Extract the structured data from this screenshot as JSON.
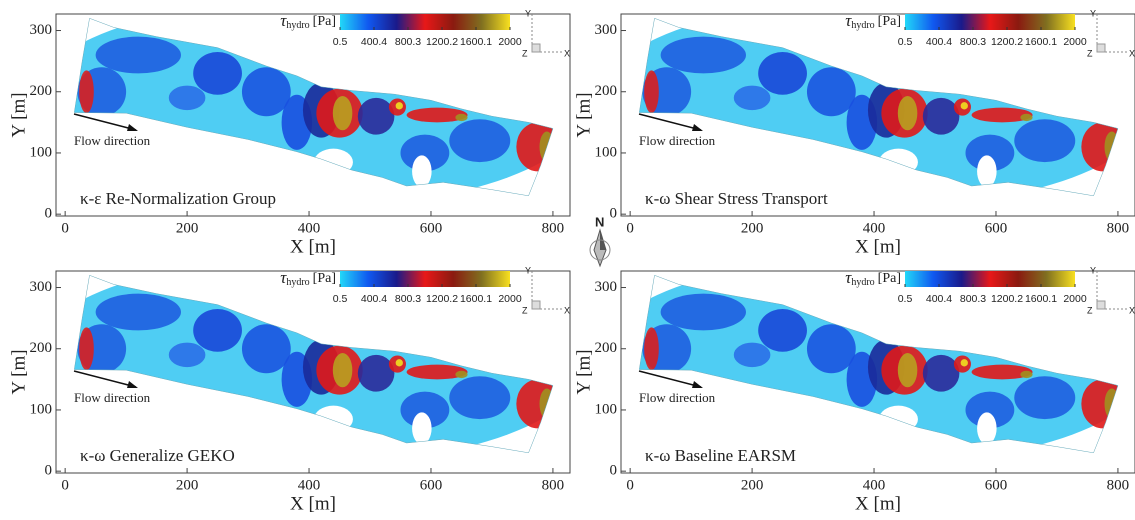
{
  "chart_data": [
    {
      "type": "contour",
      "panel_label": "κ-ε Re-Normalization Group",
      "xlabel": "X [m]",
      "ylabel": "Y [m]",
      "xlim": [
        -15,
        828
      ],
      "ylim": [
        -3,
        327
      ],
      "xticks": [
        0,
        200,
        400,
        600,
        800
      ],
      "yticks": [
        0,
        100,
        200,
        300
      ],
      "colorbar_symbol": "τ",
      "colorbar_subscript": "hydro",
      "colorbar_unit": "[Pa]",
      "colorbar_ticks": [
        0.5,
        400.4,
        800.3,
        1200.2,
        1600.1,
        2000
      ],
      "colormap": [
        "#22d8f8",
        "#1058f0",
        "#1a1a8a",
        "#e81818",
        "#8a1a10",
        "#807020",
        "#f8e020"
      ],
      "annotation": "Flow direction",
      "triad": [
        "Y",
        "Z",
        "X"
      ]
    },
    {
      "type": "contour",
      "panel_label": "κ-ω Shear Stress Transport",
      "xlabel": "X [m]",
      "ylabel": "Y [m]",
      "xlim": [
        -15,
        828
      ],
      "ylim": [
        -3,
        327
      ],
      "xticks": [
        0,
        200,
        400,
        600,
        800
      ],
      "yticks": [
        0,
        100,
        200,
        300
      ],
      "colorbar_symbol": "τ",
      "colorbar_subscript": "hydro",
      "colorbar_unit": "[Pa]",
      "colorbar_ticks": [
        0.5,
        400.4,
        800.3,
        1200.2,
        1600.1,
        2000
      ],
      "colormap": [
        "#22d8f8",
        "#1058f0",
        "#1a1a8a",
        "#e81818",
        "#8a1a10",
        "#807020",
        "#f8e020"
      ],
      "annotation": "Flow direction",
      "triad": [
        "Y",
        "Z",
        "X"
      ]
    },
    {
      "type": "contour",
      "panel_label": "κ-ω Generalize GEKO",
      "xlabel": "X [m]",
      "ylabel": "Y [m]",
      "xlim": [
        -15,
        828
      ],
      "ylim": [
        -3,
        327
      ],
      "xticks": [
        0,
        200,
        400,
        600,
        800
      ],
      "yticks": [
        0,
        100,
        200,
        300
      ],
      "colorbar_symbol": "τ",
      "colorbar_subscript": "hydro",
      "colorbar_unit": "[Pa]",
      "colorbar_ticks": [
        0.5,
        400.4,
        800.3,
        1200.2,
        1600.1,
        2000
      ],
      "colormap": [
        "#22d8f8",
        "#1058f0",
        "#1a1a8a",
        "#e81818",
        "#8a1a10",
        "#807020",
        "#f8e020"
      ],
      "annotation": "Flow direction",
      "triad": [
        "Y",
        "Z",
        "X"
      ]
    },
    {
      "type": "contour",
      "panel_label": "κ-ω Baseline EARSM",
      "xlabel": "X [m]",
      "ylabel": "Y [m]",
      "xlim": [
        -15,
        828
      ],
      "ylim": [
        -3,
        327
      ],
      "xticks": [
        0,
        200,
        400,
        600,
        800
      ],
      "yticks": [
        0,
        100,
        200,
        300
      ],
      "colorbar_symbol": "τ",
      "colorbar_subscript": "hydro",
      "colorbar_unit": "[Pa]",
      "colorbar_ticks": [
        0.5,
        400.4,
        800.3,
        1200.2,
        1600.1,
        2000
      ],
      "colormap": [
        "#22d8f8",
        "#1058f0",
        "#1a1a8a",
        "#e81818",
        "#8a1a10",
        "#807020",
        "#f8e020"
      ],
      "annotation": "Flow direction",
      "triad": [
        "Y",
        "Z",
        "X"
      ]
    }
  ],
  "compass": {
    "label": "N"
  }
}
